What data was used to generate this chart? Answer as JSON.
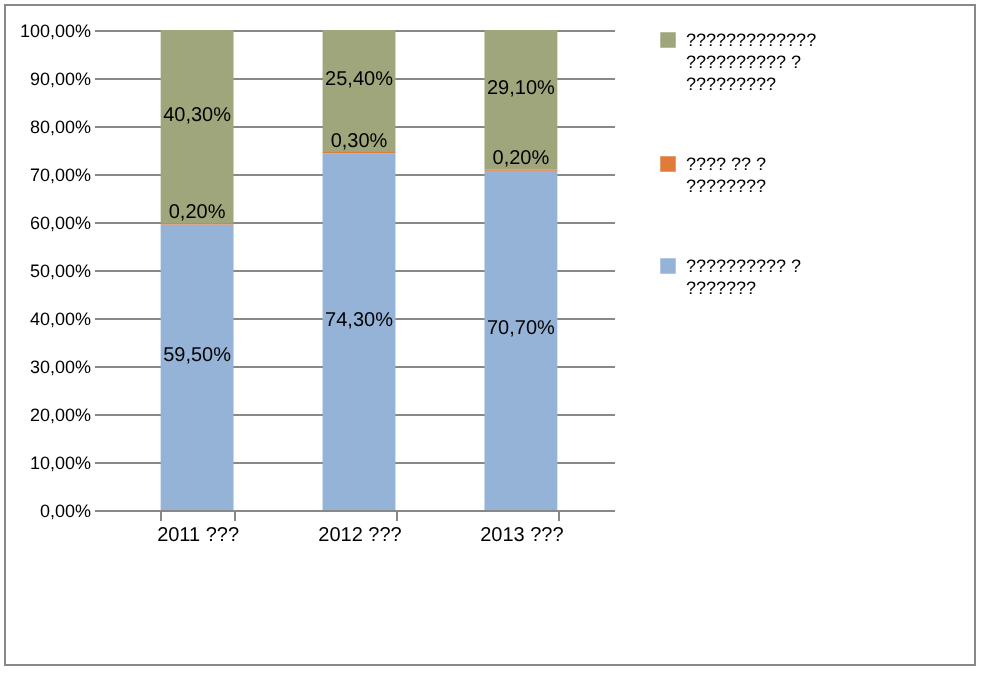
{
  "chart_data": {
    "type": "bar",
    "stacked": true,
    "categories": [
      "2011 ???",
      "2012 ???",
      "2013 ???"
    ],
    "series": [
      {
        "name": "?????????? ? ???????",
        "color": "#95b3d7",
        "values": [
          59.5,
          74.3,
          70.7
        ],
        "value_labels": [
          "59,50%",
          "74,30%",
          "70,70%"
        ]
      },
      {
        "name": "???? ?? ? ????????",
        "color": "#e07b39",
        "values": [
          0.2,
          0.3,
          0.2
        ],
        "value_labels": [
          "0,20%",
          "0,30%",
          "0,20%"
        ]
      },
      {
        "name": "????????????? ?????????? ? ?????????",
        "color": "#9fa67b",
        "values": [
          40.3,
          25.4,
          29.1
        ],
        "value_labels": [
          "40,30%",
          "25,40%",
          "29,10%"
        ]
      }
    ],
    "ylim": [
      0,
      100
    ],
    "yticks": [
      {
        "value": 0,
        "label": "0,00%"
      },
      {
        "value": 10,
        "label": "10,00%"
      },
      {
        "value": 20,
        "label": "20,00%"
      },
      {
        "value": 30,
        "label": "30,00%"
      },
      {
        "value": 40,
        "label": "40,00%"
      },
      {
        "value": 50,
        "label": "50,00%"
      },
      {
        "value": 60,
        "label": "60,00%"
      },
      {
        "value": 70,
        "label": "70,00%"
      },
      {
        "value": 80,
        "label": "80,00%"
      },
      {
        "value": 90,
        "label": "90,00%"
      },
      {
        "value": 100,
        "label": "100,00%"
      }
    ],
    "grid": "y",
    "legend": "right"
  }
}
